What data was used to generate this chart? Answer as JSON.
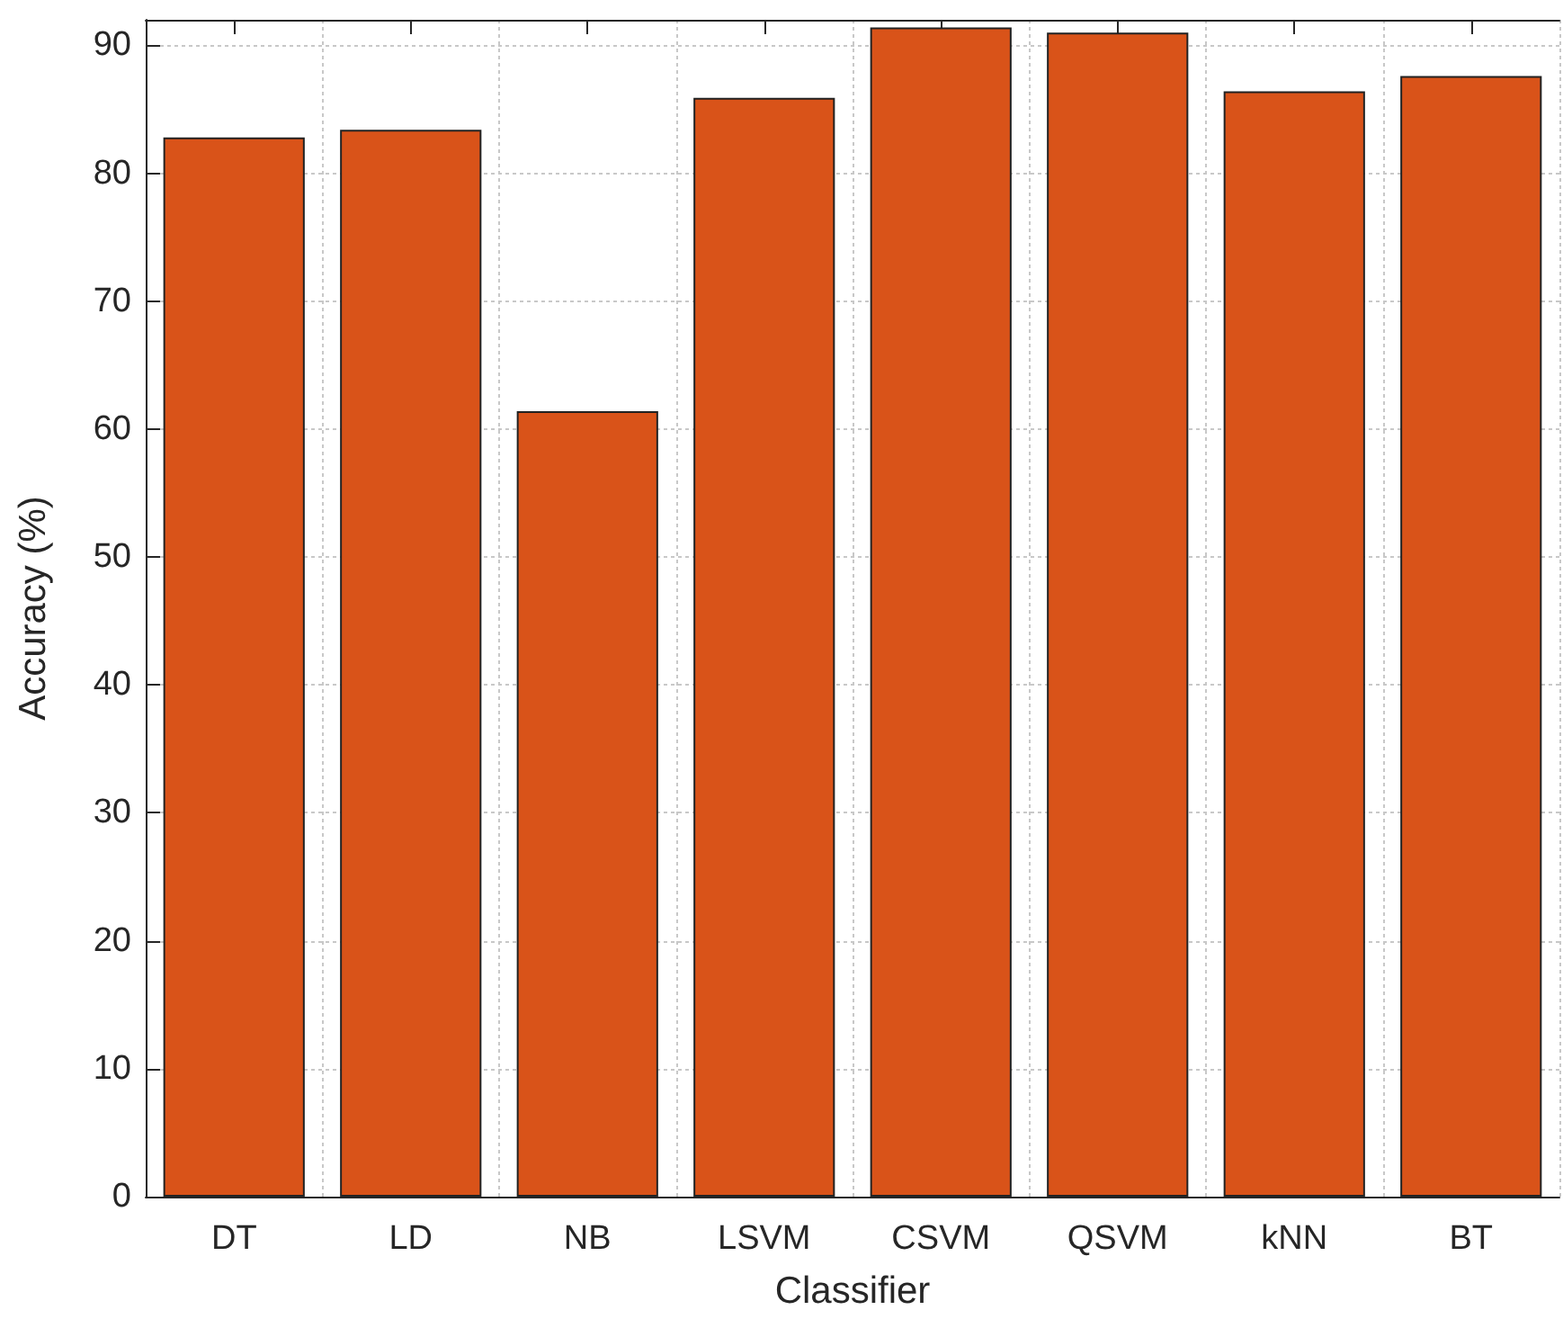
{
  "chart_data": {
    "type": "bar",
    "xlabel": "Classifier",
    "ylabel": "Accuracy (%)",
    "categories": [
      "DT",
      "LD",
      "NB",
      "LSVM",
      "CSVM",
      "QSVM",
      "kNN",
      "BT"
    ],
    "values": [
      82.8,
      83.4,
      61.4,
      85.9,
      91.4,
      91.0,
      86.4,
      87.6
    ],
    "color": "#d95319",
    "ylim": [
      0,
      92
    ],
    "yticks": [
      0,
      10,
      20,
      30,
      40,
      50,
      60,
      70,
      80,
      90
    ],
    "grid": true
  }
}
